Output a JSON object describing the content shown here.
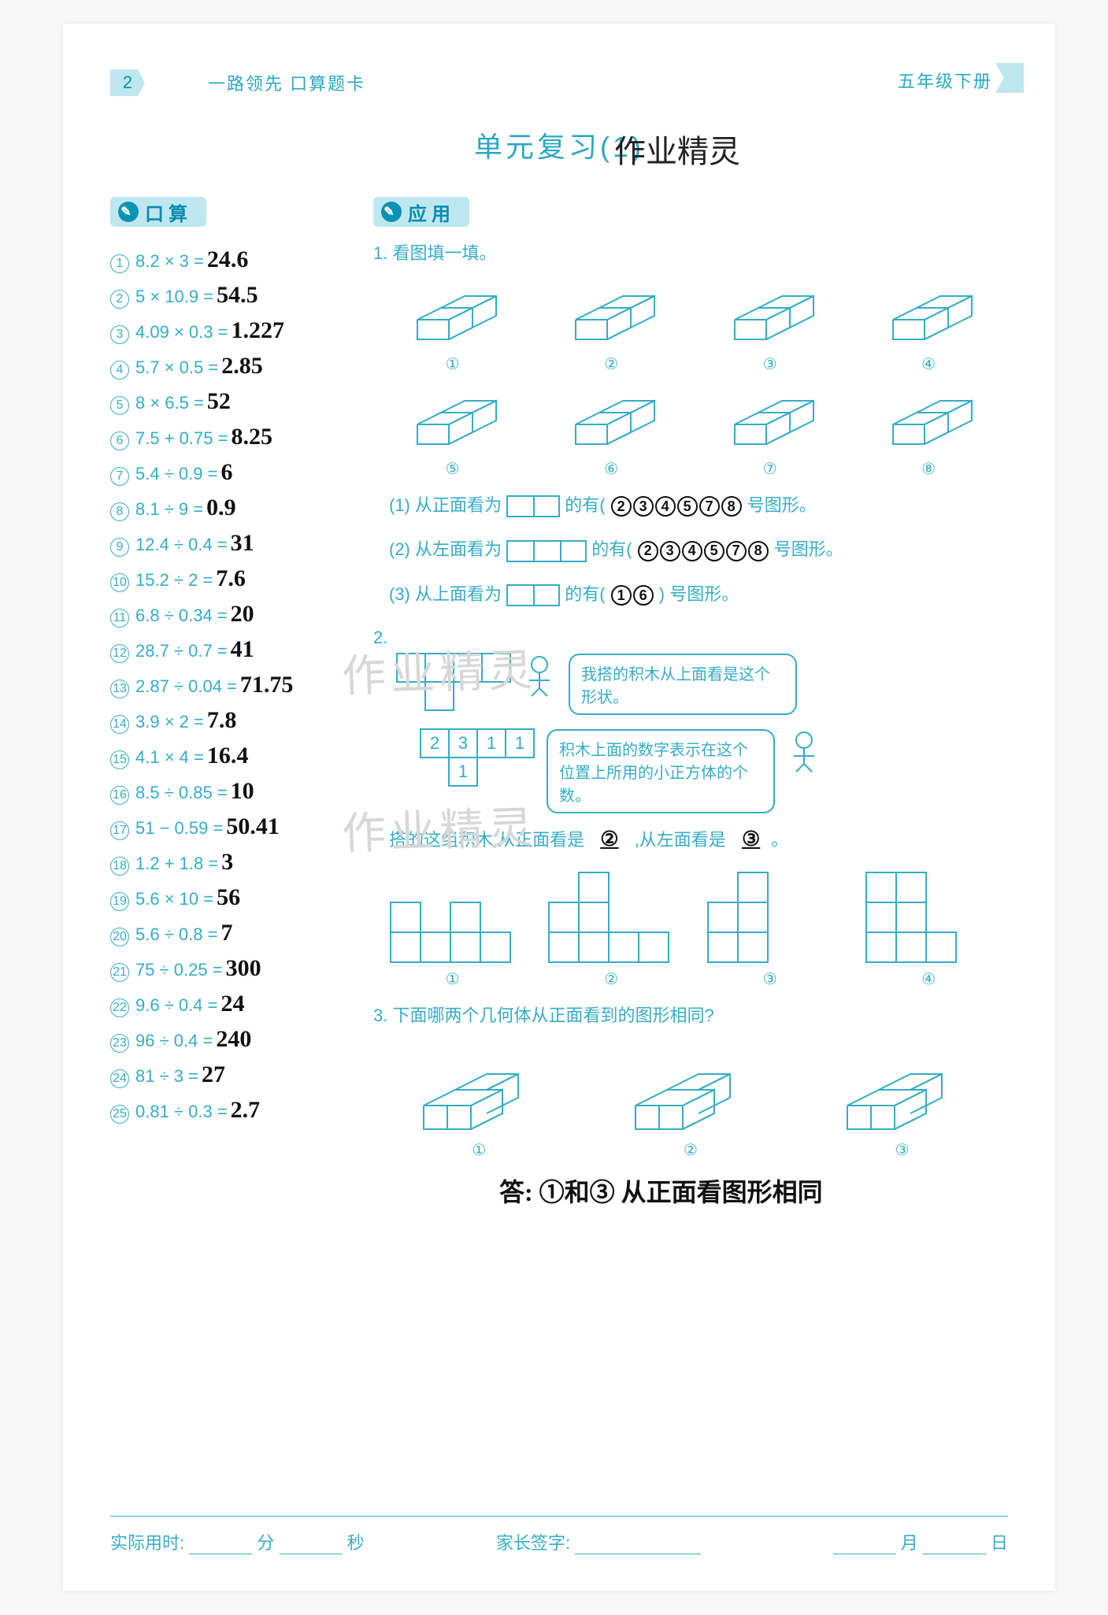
{
  "colors": {
    "accent": "#35adc6",
    "accent_light": "#bfe7f0",
    "text_hand": "#111111",
    "bg": "#ffffff"
  },
  "typography": {
    "body_fontsize": 22,
    "title_fontsize": 36,
    "hand_fontsize": 30
  },
  "header": {
    "page_number": "2",
    "left_title": "一路领先  口算题卡",
    "right_title": "五年级下册"
  },
  "title": "单元复习(1)",
  "hand_title_annotation": "作业精灵",
  "sections": {
    "mental": {
      "label": "口算"
    },
    "application": {
      "label": "应用"
    }
  },
  "mental_questions": [
    {
      "n": "1",
      "expr": "8.2 × 3 =",
      "ans": "24.6"
    },
    {
      "n": "2",
      "expr": "5 × 10.9 =",
      "ans": "54.5"
    },
    {
      "n": "3",
      "expr": "4.09 × 0.3 =",
      "ans": "1.227"
    },
    {
      "n": "4",
      "expr": "5.7 × 0.5 =",
      "ans": "2.85"
    },
    {
      "n": "5",
      "expr": "8 × 6.5 =",
      "ans": "52"
    },
    {
      "n": "6",
      "expr": "7.5 + 0.75 =",
      "ans": "8.25"
    },
    {
      "n": "7",
      "expr": "5.4 ÷ 0.9 =",
      "ans": "6"
    },
    {
      "n": "8",
      "expr": "8.1 ÷ 9 =",
      "ans": "0.9"
    },
    {
      "n": "9",
      "expr": "12.4 ÷ 0.4 =",
      "ans": "31"
    },
    {
      "n": "10",
      "expr": "15.2 ÷ 2 =",
      "ans": "7.6"
    },
    {
      "n": "11",
      "expr": "6.8 ÷ 0.34 =",
      "ans": "20"
    },
    {
      "n": "12",
      "expr": "28.7 ÷ 0.7 =",
      "ans": "41"
    },
    {
      "n": "13",
      "expr": "2.87 ÷ 0.04 =",
      "ans": "71.75"
    },
    {
      "n": "14",
      "expr": "3.9 × 2 =",
      "ans": "7.8"
    },
    {
      "n": "15",
      "expr": "4.1 × 4 =",
      "ans": "16.4"
    },
    {
      "n": "16",
      "expr": "8.5 ÷ 0.85 =",
      "ans": "10"
    },
    {
      "n": "17",
      "expr": "51 − 0.59 =",
      "ans": "50.41"
    },
    {
      "n": "18",
      "expr": "1.2 + 1.8 =",
      "ans": "3"
    },
    {
      "n": "19",
      "expr": "5.6 × 10 =",
      "ans": "56"
    },
    {
      "n": "20",
      "expr": "5.6 ÷ 0.8 =",
      "ans": "7"
    },
    {
      "n": "21",
      "expr": "75 ÷ 0.25 =",
      "ans": "300"
    },
    {
      "n": "22",
      "expr": "9.6 ÷ 0.4 =",
      "ans": "24"
    },
    {
      "n": "23",
      "expr": "96 ÷ 0.4 =",
      "ans": "240"
    },
    {
      "n": "24",
      "expr": "81 ÷ 3 =",
      "ans": "27"
    },
    {
      "n": "25",
      "expr": "0.81 ÷ 0.3 =",
      "ans": "2.7"
    }
  ],
  "application": {
    "q1": {
      "prompt": "1.  看图填一填。",
      "row1_labels": [
        "①",
        "②",
        "③",
        "④"
      ],
      "row2_labels": [
        "⑤",
        "⑥",
        "⑦",
        "⑧"
      ],
      "lines": [
        {
          "pre": "(1) 从正面看为",
          "shape_cells": 2,
          "mid": "的有(",
          "ans_circled": [
            "2",
            "3",
            "4",
            "5",
            "7",
            "8"
          ],
          "post": "号图形。"
        },
        {
          "pre": "(2) 从左面看为",
          "shape_cells": 3,
          "mid": "的有(",
          "ans_circled": [
            "2",
            "3",
            "4",
            "5",
            "7",
            "8"
          ],
          "post": "号图形。"
        },
        {
          "pre": "(3) 从上面看为",
          "shape_cells": 2,
          "mid": "的有(",
          "ans_circled": [
            "1",
            "6"
          ],
          "post": ") 号图形。"
        }
      ]
    },
    "q2": {
      "prompt": "2.",
      "bubble_top": "我搭的积木从上面看是这个形状。",
      "top_cells_layout": [
        [
          1,
          1,
          1,
          1
        ],
        [
          0,
          1,
          0,
          0
        ]
      ],
      "num_grid": [
        [
          "2",
          "3",
          "1",
          "1"
        ],
        [
          "",
          "1",
          "",
          ""
        ]
      ],
      "bubble_right": "积木上面的数字表示在这个位置上所用的小正方体的个数。",
      "sentence_pre": "搭的这组积木,从正面看是",
      "ans_front": "②",
      "sentence_mid": ",从左面看是",
      "ans_left": "③",
      "ortho_labels": [
        "①",
        "②",
        "③",
        "④"
      ],
      "orthos": [
        [
          [
            0,
            0,
            0,
            0
          ],
          [
            1,
            0,
            1,
            0
          ],
          [
            1,
            1,
            1,
            1
          ]
        ],
        [
          [
            0,
            1,
            0,
            0
          ],
          [
            1,
            1,
            0,
            0
          ],
          [
            1,
            1,
            1,
            1
          ]
        ],
        [
          [
            0,
            1,
            0
          ],
          [
            1,
            1,
            0
          ],
          [
            1,
            1,
            0
          ]
        ],
        [
          [
            1,
            1,
            0
          ],
          [
            1,
            1,
            0
          ],
          [
            1,
            1,
            1
          ]
        ]
      ]
    },
    "q3": {
      "prompt": "3.  下面哪两个几何体从正面看到的图形相同?",
      "labels": [
        "①",
        "②",
        "③"
      ],
      "answer_text": "答: ①和③ 从正面看图形相同"
    }
  },
  "footer": {
    "time_label": "实际用时:",
    "time_min": "分",
    "time_sec": "秒",
    "sign_label": "家长签字:",
    "month": "月",
    "day": "日"
  },
  "watermarks": [
    "作业精灵",
    "作业精灵"
  ]
}
